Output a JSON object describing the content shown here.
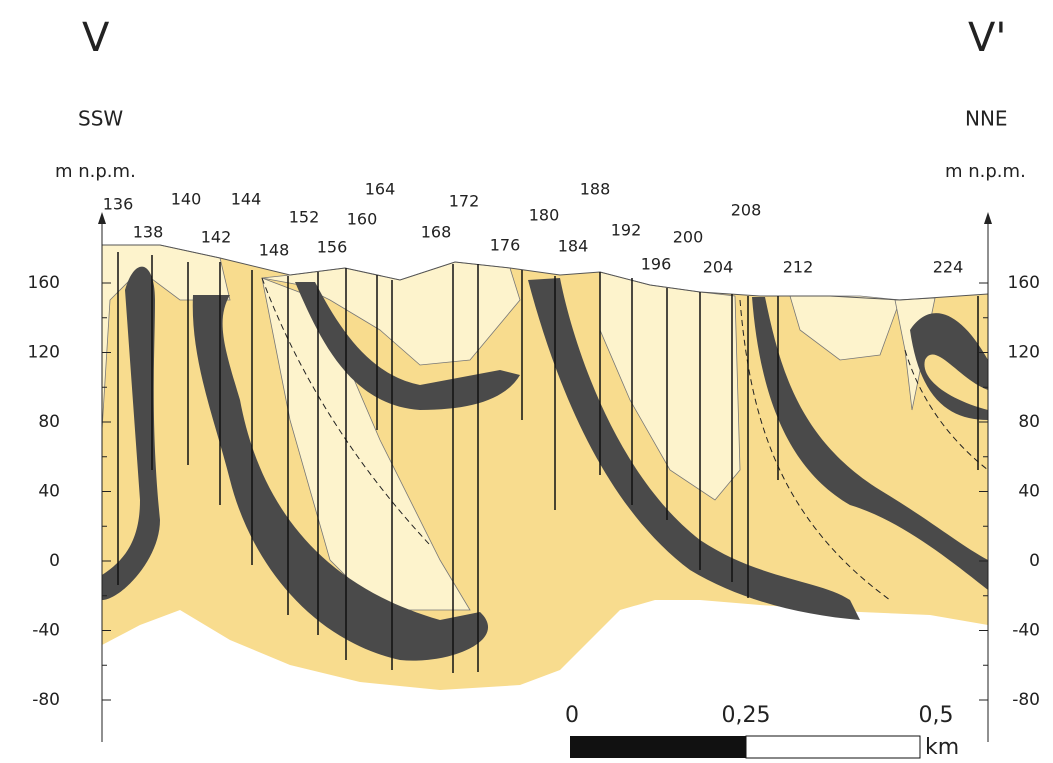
{
  "header": {
    "left_title": "V",
    "right_title": "V'",
    "left_direction": "SSW",
    "right_direction": "NNE"
  },
  "left_axis": {
    "label": "m n.p.m.",
    "ticks": [
      160,
      120,
      80,
      40,
      0,
      -40,
      -80
    ]
  },
  "right_axis": {
    "label": "m n.p.m.",
    "ticks": [
      160,
      120,
      80,
      40,
      0,
      -40,
      -80
    ]
  },
  "wells": [
    136,
    138,
    140,
    142,
    144,
    148,
    152,
    156,
    160,
    164,
    168,
    172,
    176,
    180,
    184,
    188,
    192,
    196,
    200,
    204,
    208,
    212,
    224
  ],
  "scale_bar": {
    "labels": [
      "0",
      "0,25",
      "0,5"
    ],
    "unit": "km"
  }
}
